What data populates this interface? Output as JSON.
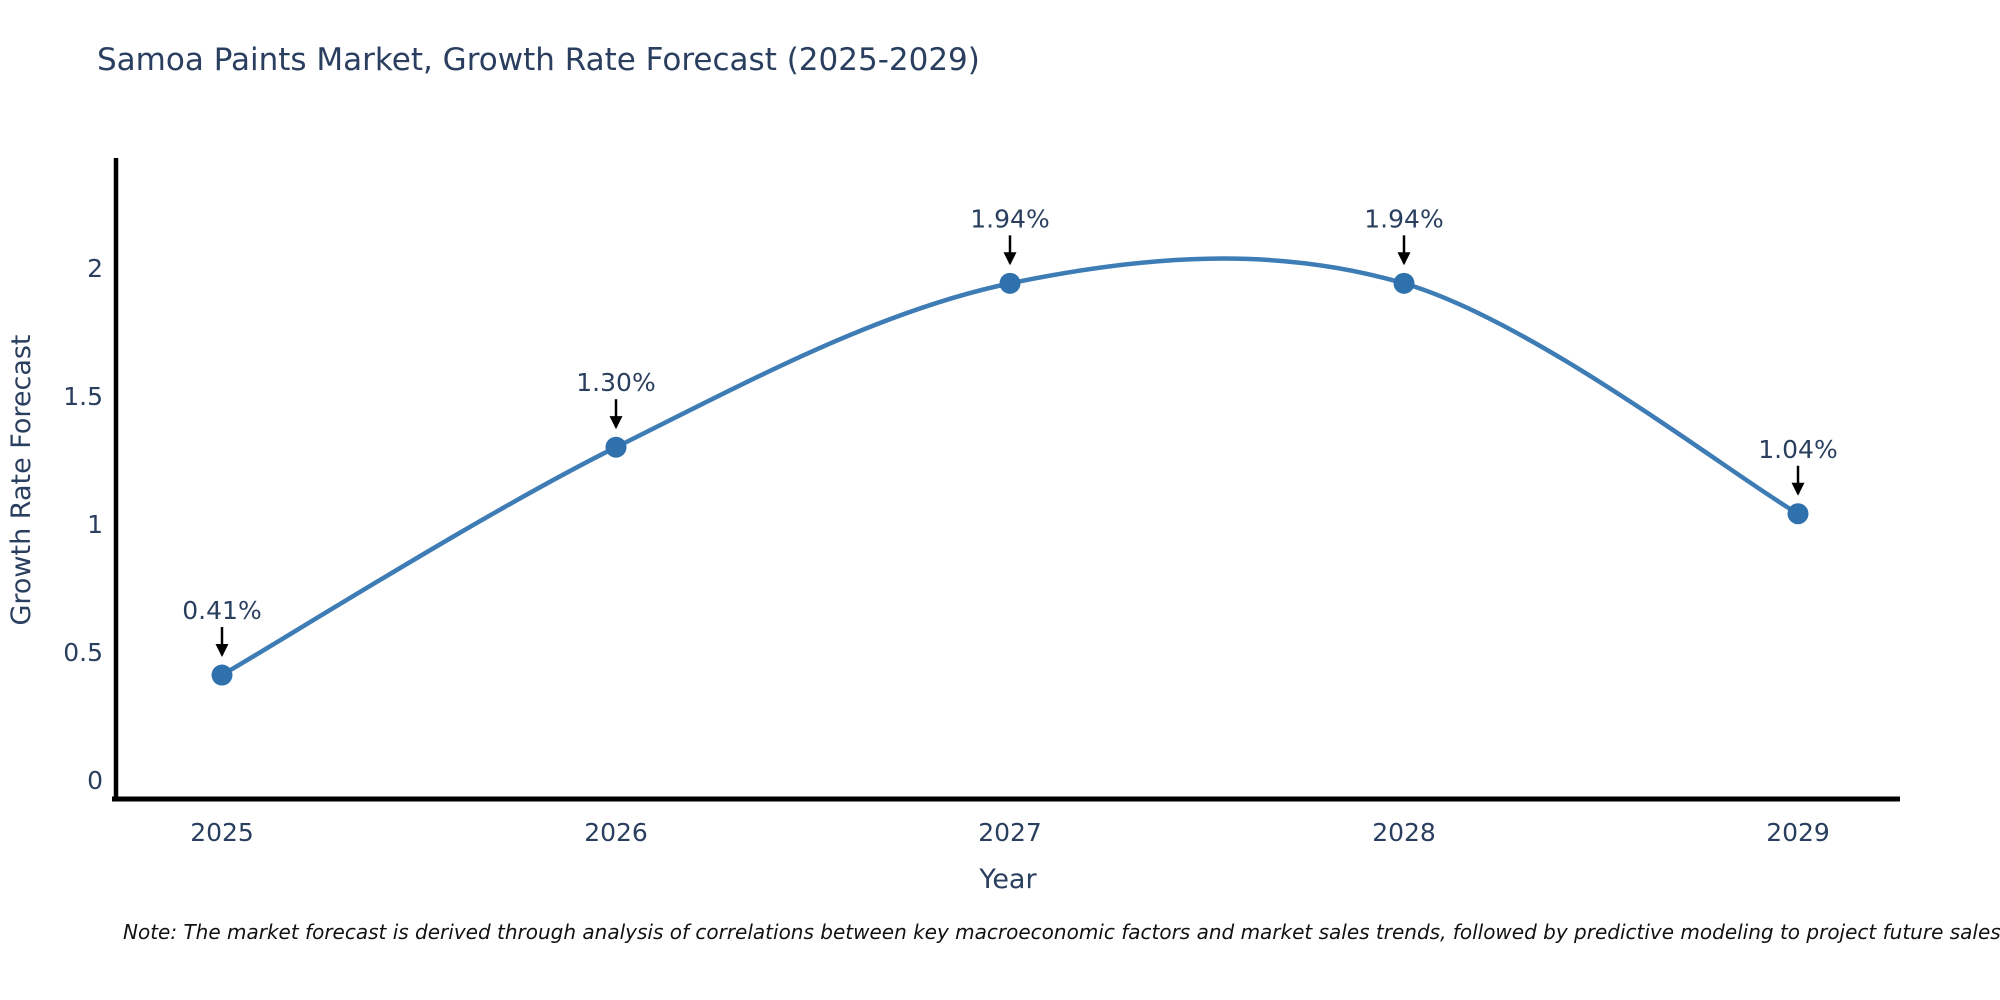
{
  "title": "Samoa Paints Market, Growth Rate Forecast (2025-2029)",
  "note": "Note: The market forecast is derived through analysis of correlations between key macroeconomic factors and market sales trends, followed by predictive modeling to project future sales",
  "colors": {
    "line": "#3d7cb4",
    "marker": "#2f71ad",
    "axis": "#000000",
    "tick_text": "#2a3f5f",
    "annotation_text": "#2a3f5f",
    "arrow": "#000000",
    "title_text": "#2a3f5f",
    "note_text": "#111111",
    "background": "#ffffff"
  },
  "chart_data": {
    "type": "line",
    "title": "Samoa Paints Market, Growth Rate Forecast (2025-2029)",
    "xlabel": "Year",
    "ylabel": "Growth Rate Forecast",
    "x": [
      2025,
      2026,
      2027,
      2028,
      2029
    ],
    "y": [
      0.41,
      1.3,
      1.94,
      1.94,
      1.04
    ],
    "point_labels": [
      "0.41%",
      "1.30%",
      "1.94%",
      "1.94%",
      "1.04%"
    ],
    "x_tick_labels": [
      "2025",
      "2026",
      "2027",
      "2028",
      "2029"
    ],
    "y_tick_values": [
      0,
      0.5,
      1,
      1.5,
      2
    ],
    "y_tick_labels": [
      "0",
      "0.5",
      "1",
      "1.5",
      "2"
    ],
    "ylim": [
      -0.09,
      2.43
    ],
    "line_shape": "spline",
    "grid": false,
    "legend": "none",
    "annotations": "black arrows pointing down from percentage labels to each data point"
  }
}
